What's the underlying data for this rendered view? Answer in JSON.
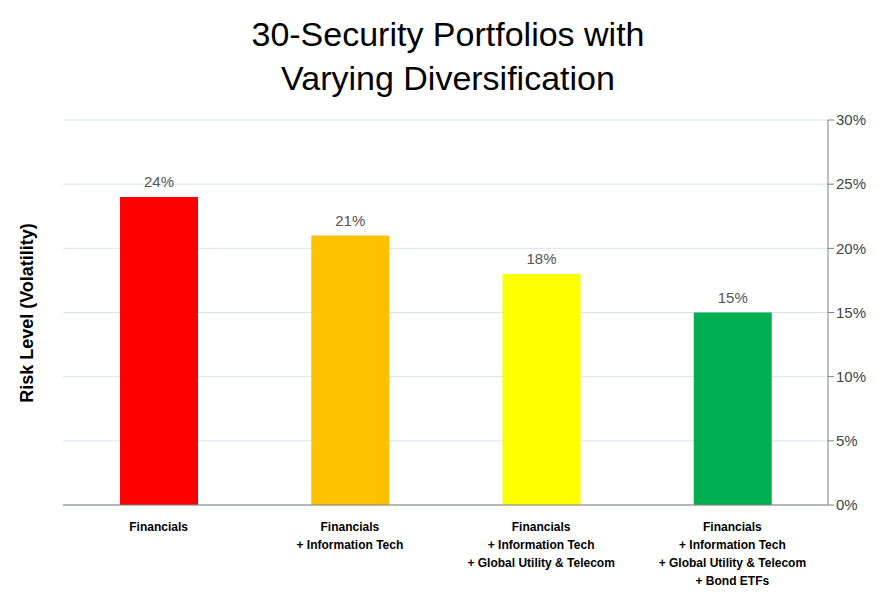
{
  "chart_data": {
    "type": "bar",
    "title": "30-Security Portfolios with\nVarying Diversification",
    "y_label": "Risk Level (Volatility)",
    "categories": [
      "Financials",
      "Financials\n+ Information Tech",
      "Financials\n+ Information Tech\n+ Global Utility & Telecom",
      "Financials\n+ Information Tech\n+ Global Utility & Telecom\n+ Bond ETFs"
    ],
    "values": [
      24,
      21,
      18,
      15
    ],
    "value_labels": [
      "24%",
      "21%",
      "18%",
      "15%"
    ],
    "data_labels": true,
    "colors": [
      "#ff0000",
      "#ffc000",
      "#ffff00",
      "#00b050"
    ],
    "ylim": [
      0,
      30
    ],
    "yticks": [
      {
        "value": 0,
        "label": "0%"
      },
      {
        "value": 5,
        "label": "5%"
      },
      {
        "value": 10,
        "label": "10%"
      },
      {
        "value": 15,
        "label": "15%"
      },
      {
        "value": 20,
        "label": "20%"
      },
      {
        "value": 25,
        "label": "25%"
      },
      {
        "value": 30,
        "label": "30%"
      }
    ],
    "grid": true
  }
}
